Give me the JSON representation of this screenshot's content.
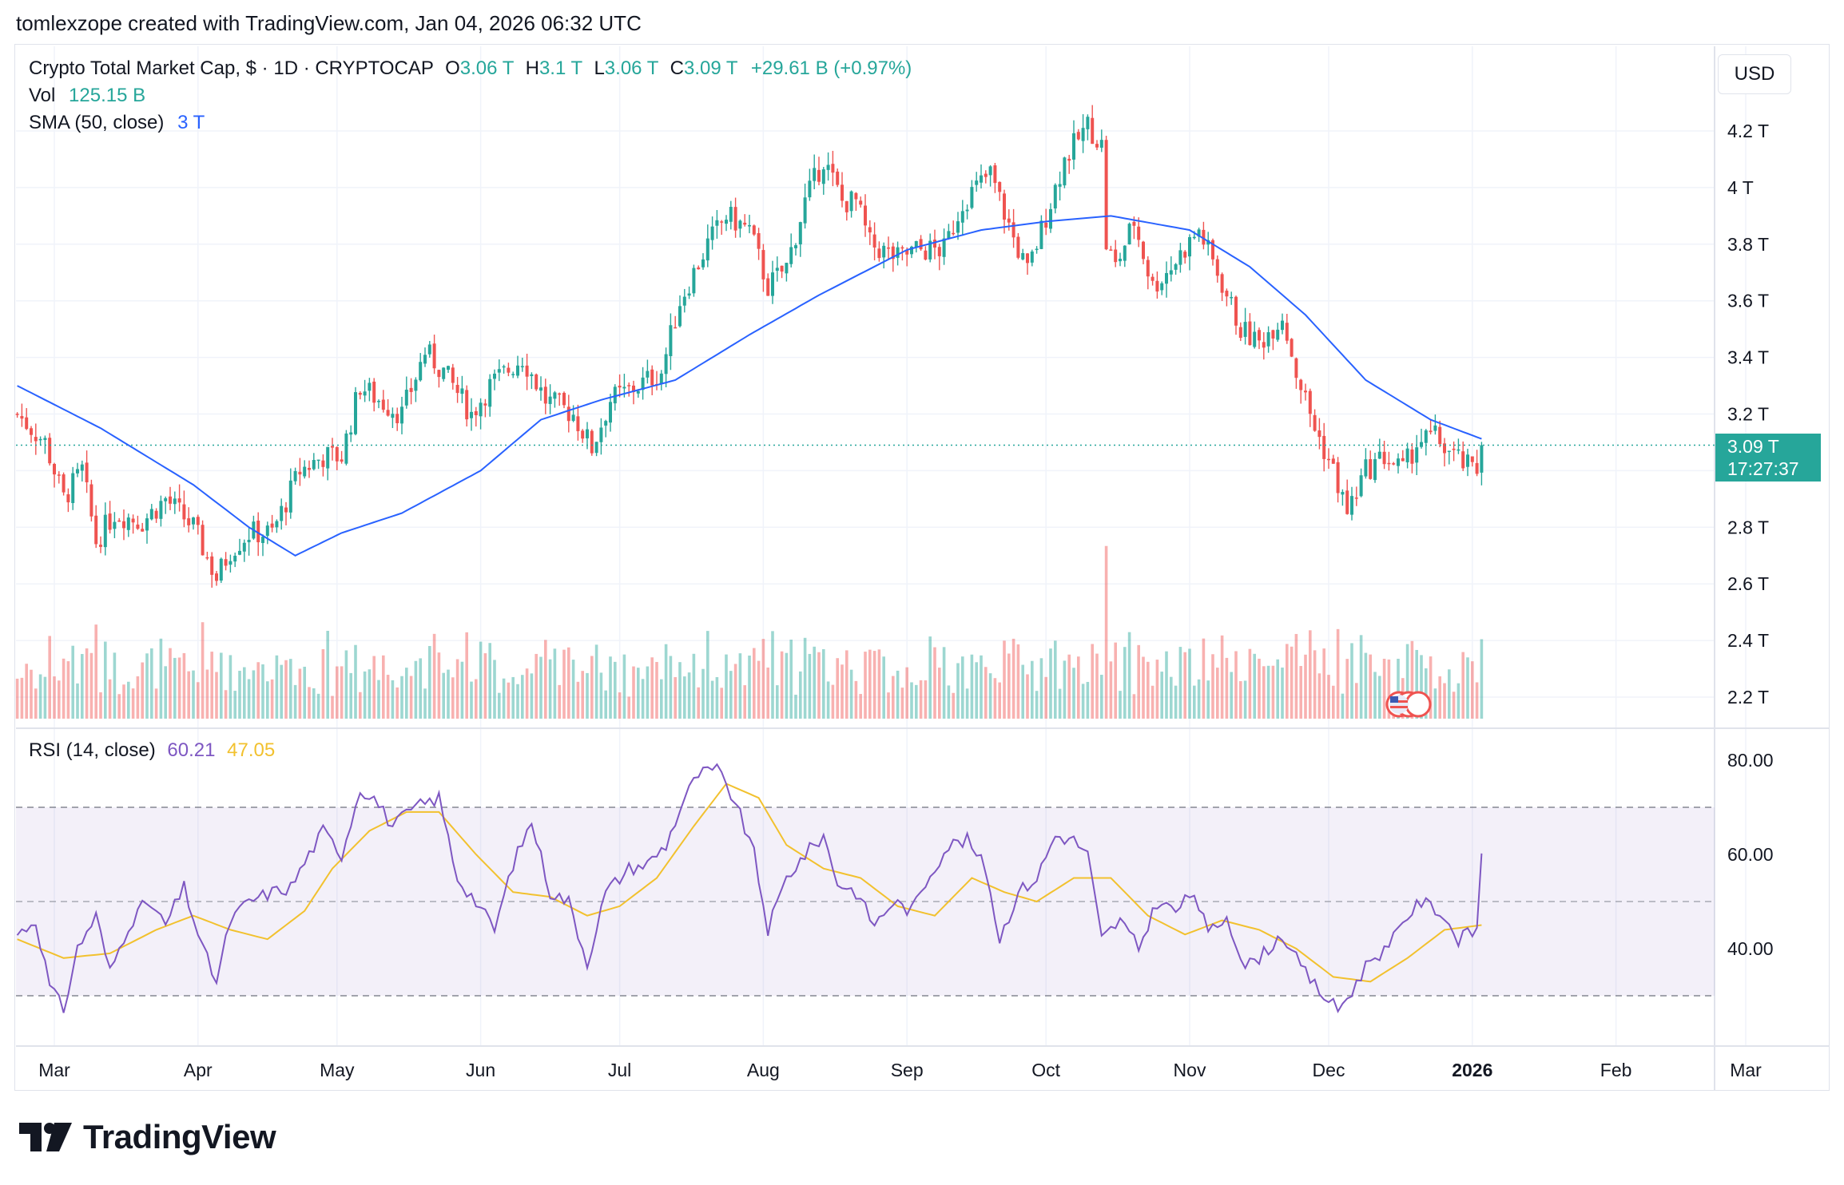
{
  "header": {
    "attribution": "tomlexzope created with TradingView.com, Jan 04, 2026 06:32 UTC"
  },
  "legend": {
    "symbol": "Crypto Total Market Cap, $ · 1D · CRYPTOCAP",
    "o_label": "O",
    "o_value": "3.06 T",
    "h_label": "H",
    "h_value": "3.1 T",
    "l_label": "L",
    "l_value": "3.06 T",
    "c_label": "C",
    "c_value": "3.09 T",
    "change": "+29.61 B (+0.97%)",
    "vol_label": "Vol",
    "vol_value": "125.15 B",
    "sma_label": "SMA (50, close)",
    "sma_value": "3 T",
    "rsi_label": "RSI (14, close)",
    "rsi_value": "60.21",
    "rsi_ma_value": "47.05"
  },
  "axis": {
    "currency": "USD",
    "current_price": "3.09 T",
    "countdown": "17:27:37"
  },
  "footer": {
    "brand": "TradingView"
  },
  "colors": {
    "up": "#26a69a",
    "down": "#ef5350",
    "sma": "#2962ff",
    "rsi": "#7e57c2",
    "rsi_ma": "#f2c12e",
    "rsi_band": "#7e57c2"
  },
  "chart_data": [
    {
      "type": "candlestick",
      "title": "Crypto Total Market Cap, $ · 1D · CRYPTOCAP",
      "unit": "T",
      "y_ticks": [
        "4.2 T",
        "4 T",
        "3.8 T",
        "3.6 T",
        "3.4 T",
        "3.2 T",
        "2.8 T",
        "2.6 T",
        "2.4 T",
        "2.2 T"
      ],
      "y_tick_values": [
        4.2,
        4.0,
        3.8,
        3.6,
        3.4,
        3.2,
        2.8,
        2.6,
        2.4,
        2.2
      ],
      "ylim": [
        2.12,
        4.32
      ],
      "x_ticks": [
        "Mar",
        "Apr",
        "May",
        "Jun",
        "Jul",
        "Aug",
        "Sep",
        "Oct",
        "Nov",
        "Dec",
        "2026",
        "Feb",
        "Mar"
      ],
      "x_tick_days": [
        0,
        31,
        61,
        92,
        122,
        153,
        184,
        214,
        245,
        275,
        306,
        337,
        365
      ],
      "day0_offset": -8,
      "last_day": 308,
      "close_anchors": [
        {
          "d": -8,
          "v": 3.2
        },
        {
          "d": -2,
          "v": 3.1
        },
        {
          "d": 2,
          "v": 2.9
        },
        {
          "d": 6,
          "v": 3.0
        },
        {
          "d": 9,
          "v": 2.75
        },
        {
          "d": 13,
          "v": 2.85
        },
        {
          "d": 19,
          "v": 2.82
        },
        {
          "d": 24,
          "v": 2.9
        },
        {
          "d": 30,
          "v": 2.8
        },
        {
          "d": 35,
          "v": 2.62
        },
        {
          "d": 38,
          "v": 2.72
        },
        {
          "d": 42,
          "v": 2.78
        },
        {
          "d": 47,
          "v": 2.78
        },
        {
          "d": 53,
          "v": 3.0
        },
        {
          "d": 58,
          "v": 3.05
        },
        {
          "d": 62,
          "v": 3.05
        },
        {
          "d": 66,
          "v": 3.3
        },
        {
          "d": 70,
          "v": 3.25
        },
        {
          "d": 75,
          "v": 3.2
        },
        {
          "d": 80,
          "v": 3.42
        },
        {
          "d": 84,
          "v": 3.35
        },
        {
          "d": 90,
          "v": 3.2
        },
        {
          "d": 94,
          "v": 3.3
        },
        {
          "d": 101,
          "v": 3.4
        },
        {
          "d": 106,
          "v": 3.25
        },
        {
          "d": 112,
          "v": 3.2
        },
        {
          "d": 116,
          "v": 3.08
        },
        {
          "d": 120,
          "v": 3.25
        },
        {
          "d": 126,
          "v": 3.3
        },
        {
          "d": 131,
          "v": 3.35
        },
        {
          "d": 135,
          "v": 3.6
        },
        {
          "d": 141,
          "v": 3.8
        },
        {
          "d": 145,
          "v": 3.9
        },
        {
          "d": 150,
          "v": 3.85
        },
        {
          "d": 154,
          "v": 3.65
        },
        {
          "d": 158,
          "v": 3.72
        },
        {
          "d": 162,
          "v": 3.95
        },
        {
          "d": 166,
          "v": 4.1
        },
        {
          "d": 170,
          "v": 3.95
        },
        {
          "d": 173,
          "v": 3.95
        },
        {
          "d": 176,
          "v": 3.8
        },
        {
          "d": 182,
          "v": 3.75
        },
        {
          "d": 186,
          "v": 3.78
        },
        {
          "d": 192,
          "v": 3.78
        },
        {
          "d": 196,
          "v": 3.95
        },
        {
          "d": 202,
          "v": 4.05
        },
        {
          "d": 207,
          "v": 3.82
        },
        {
          "d": 210,
          "v": 3.7
        },
        {
          "d": 214,
          "v": 3.9
        },
        {
          "d": 218,
          "v": 4.1
        },
        {
          "d": 223,
          "v": 4.22
        },
        {
          "d": 226,
          "v": 4.15
        },
        {
          "d": 227,
          "v": 3.8
        },
        {
          "d": 229,
          "v": 3.72
        },
        {
          "d": 233,
          "v": 3.88
        },
        {
          "d": 237,
          "v": 3.65
        },
        {
          "d": 241,
          "v": 3.72
        },
        {
          "d": 247,
          "v": 3.85
        },
        {
          "d": 251,
          "v": 3.7
        },
        {
          "d": 256,
          "v": 3.5
        },
        {
          "d": 260,
          "v": 3.45
        },
        {
          "d": 265,
          "v": 3.55
        },
        {
          "d": 268,
          "v": 3.35
        },
        {
          "d": 272,
          "v": 3.15
        },
        {
          "d": 276,
          "v": 3.0
        },
        {
          "d": 279,
          "v": 2.85
        },
        {
          "d": 283,
          "v": 3.0
        },
        {
          "d": 287,
          "v": 3.05
        },
        {
          "d": 291,
          "v": 3.0
        },
        {
          "d": 294,
          "v": 3.1
        },
        {
          "d": 298,
          "v": 3.12
        },
        {
          "d": 302,
          "v": 3.05
        },
        {
          "d": 306,
          "v": 3.0
        },
        {
          "d": 310,
          "v": 3.0
        },
        {
          "d": 314,
          "v": 2.92
        },
        {
          "d": 318,
          "v": 2.95
        },
        {
          "d": 323,
          "v": 2.98
        },
        {
          "d": 327,
          "v": 2.95
        },
        {
          "d": 331,
          "v": 3.0
        },
        {
          "d": 334,
          "v": 3.06
        },
        {
          "d": 336,
          "v": 3.09
        }
      ],
      "sma_anchors": [
        {
          "d": -8,
          "v": 3.3
        },
        {
          "d": 10,
          "v": 3.15
        },
        {
          "d": 30,
          "v": 2.95
        },
        {
          "d": 42,
          "v": 2.8
        },
        {
          "d": 52,
          "v": 2.7
        },
        {
          "d": 62,
          "v": 2.78
        },
        {
          "d": 75,
          "v": 2.85
        },
        {
          "d": 92,
          "v": 3.0
        },
        {
          "d": 105,
          "v": 3.18
        },
        {
          "d": 118,
          "v": 3.25
        },
        {
          "d": 134,
          "v": 3.32
        },
        {
          "d": 150,
          "v": 3.48
        },
        {
          "d": 165,
          "v": 3.62
        },
        {
          "d": 184,
          "v": 3.78
        },
        {
          "d": 200,
          "v": 3.85
        },
        {
          "d": 214,
          "v": 3.88
        },
        {
          "d": 228,
          "v": 3.9
        },
        {
          "d": 245,
          "v": 3.85
        },
        {
          "d": 258,
          "v": 3.72
        },
        {
          "d": 270,
          "v": 3.55
        },
        {
          "d": 283,
          "v": 3.32
        },
        {
          "d": 297,
          "v": 3.18
        },
        {
          "d": 310,
          "v": 3.1
        },
        {
          "d": 322,
          "v": 3.05
        },
        {
          "d": 336,
          "v": 2.98
        }
      ],
      "current_price": 3.09,
      "sma_last": 3.0,
      "volume_last": "125.15 B"
    },
    {
      "type": "line",
      "title": "RSI (14, close)",
      "y_ticks": [
        "80.00",
        "60.00",
        "40.00"
      ],
      "y_tick_values": [
        80,
        60,
        40
      ],
      "ylim": [
        19,
        85
      ],
      "bands": [
        70,
        50,
        30
      ],
      "rsi_anchors": [
        {
          "d": -8,
          "v": 43
        },
        {
          "d": -4,
          "v": 46
        },
        {
          "d": -1,
          "v": 32
        },
        {
          "d": 2,
          "v": 27
        },
        {
          "d": 5,
          "v": 40
        },
        {
          "d": 9,
          "v": 47
        },
        {
          "d": 12,
          "v": 35
        },
        {
          "d": 16,
          "v": 45
        },
        {
          "d": 20,
          "v": 50
        },
        {
          "d": 24,
          "v": 45
        },
        {
          "d": 28,
          "v": 53
        },
        {
          "d": 32,
          "v": 40
        },
        {
          "d": 35,
          "v": 33
        },
        {
          "d": 38,
          "v": 46
        },
        {
          "d": 42,
          "v": 50
        },
        {
          "d": 47,
          "v": 52
        },
        {
          "d": 51,
          "v": 53
        },
        {
          "d": 55,
          "v": 60
        },
        {
          "d": 58,
          "v": 65
        },
        {
          "d": 62,
          "v": 60
        },
        {
          "d": 66,
          "v": 74
        },
        {
          "d": 69,
          "v": 72
        },
        {
          "d": 73,
          "v": 66
        },
        {
          "d": 78,
          "v": 70
        },
        {
          "d": 83,
          "v": 72
        },
        {
          "d": 87,
          "v": 55
        },
        {
          "d": 91,
          "v": 50
        },
        {
          "d": 95,
          "v": 44
        },
        {
          "d": 99,
          "v": 58
        },
        {
          "d": 103,
          "v": 67
        },
        {
          "d": 107,
          "v": 52
        },
        {
          "d": 111,
          "v": 50
        },
        {
          "d": 115,
          "v": 37
        },
        {
          "d": 119,
          "v": 52
        },
        {
          "d": 124,
          "v": 57
        },
        {
          "d": 128,
          "v": 58
        },
        {
          "d": 132,
          "v": 62
        },
        {
          "d": 136,
          "v": 72
        },
        {
          "d": 139,
          "v": 77
        },
        {
          "d": 143,
          "v": 78
        },
        {
          "d": 147,
          "v": 71
        },
        {
          "d": 151,
          "v": 60
        },
        {
          "d": 154,
          "v": 44
        },
        {
          "d": 158,
          "v": 55
        },
        {
          "d": 162,
          "v": 60
        },
        {
          "d": 166,
          "v": 64
        },
        {
          "d": 169,
          "v": 54
        },
        {
          "d": 173,
          "v": 52
        },
        {
          "d": 177,
          "v": 45
        },
        {
          "d": 181,
          "v": 50
        },
        {
          "d": 185,
          "v": 48
        },
        {
          "d": 189,
          "v": 56
        },
        {
          "d": 193,
          "v": 62
        },
        {
          "d": 197,
          "v": 63
        },
        {
          "d": 201,
          "v": 57
        },
        {
          "d": 204,
          "v": 42
        },
        {
          "d": 208,
          "v": 52
        },
        {
          "d": 212,
          "v": 55
        },
        {
          "d": 216,
          "v": 64
        },
        {
          "d": 220,
          "v": 63
        },
        {
          "d": 223,
          "v": 60
        },
        {
          "d": 226,
          "v": 42
        },
        {
          "d": 230,
          "v": 46
        },
        {
          "d": 234,
          "v": 40
        },
        {
          "d": 238,
          "v": 50
        },
        {
          "d": 242,
          "v": 48
        },
        {
          "d": 246,
          "v": 52
        },
        {
          "d": 249,
          "v": 43
        },
        {
          "d": 253,
          "v": 47
        },
        {
          "d": 257,
          "v": 36
        },
        {
          "d": 261,
          "v": 39
        },
        {
          "d": 265,
          "v": 43
        },
        {
          "d": 269,
          "v": 36
        },
        {
          "d": 273,
          "v": 31
        },
        {
          "d": 277,
          "v": 27
        },
        {
          "d": 280,
          "v": 31
        },
        {
          "d": 284,
          "v": 38
        },
        {
          "d": 288,
          "v": 40
        },
        {
          "d": 291,
          "v": 46
        },
        {
          "d": 295,
          "v": 50
        },
        {
          "d": 299,
          "v": 48
        },
        {
          "d": 303,
          "v": 42
        },
        {
          "d": 307,
          "v": 44
        },
        {
          "d": 311,
          "v": 43
        },
        {
          "d": 315,
          "v": 45
        },
        {
          "d": 319,
          "v": 42
        },
        {
          "d": 323,
          "v": 46
        },
        {
          "d": 327,
          "v": 44
        },
        {
          "d": 331,
          "v": 47
        },
        {
          "d": 334,
          "v": 56
        },
        {
          "d": 336,
          "v": 60.21
        }
      ],
      "rsi_ma_anchors": [
        {
          "d": -8,
          "v": 42
        },
        {
          "d": 2,
          "v": 38
        },
        {
          "d": 12,
          "v": 39
        },
        {
          "d": 22,
          "v": 44
        },
        {
          "d": 30,
          "v": 47
        },
        {
          "d": 38,
          "v": 44
        },
        {
          "d": 46,
          "v": 42
        },
        {
          "d": 54,
          "v": 48
        },
        {
          "d": 60,
          "v": 57
        },
        {
          "d": 68,
          "v": 65
        },
        {
          "d": 76,
          "v": 69
        },
        {
          "d": 83,
          "v": 69
        },
        {
          "d": 91,
          "v": 60
        },
        {
          "d": 99,
          "v": 52
        },
        {
          "d": 107,
          "v": 51
        },
        {
          "d": 115,
          "v": 47
        },
        {
          "d": 122,
          "v": 49
        },
        {
          "d": 130,
          "v": 55
        },
        {
          "d": 138,
          "v": 66
        },
        {
          "d": 145,
          "v": 75
        },
        {
          "d": 152,
          "v": 72
        },
        {
          "d": 158,
          "v": 62
        },
        {
          "d": 166,
          "v": 57
        },
        {
          "d": 174,
          "v": 55
        },
        {
          "d": 182,
          "v": 49
        },
        {
          "d": 190,
          "v": 47
        },
        {
          "d": 198,
          "v": 55
        },
        {
          "d": 205,
          "v": 52
        },
        {
          "d": 212,
          "v": 50
        },
        {
          "d": 220,
          "v": 55
        },
        {
          "d": 228,
          "v": 55
        },
        {
          "d": 236,
          "v": 47
        },
        {
          "d": 244,
          "v": 43
        },
        {
          "d": 252,
          "v": 46
        },
        {
          "d": 260,
          "v": 44
        },
        {
          "d": 268,
          "v": 40
        },
        {
          "d": 276,
          "v": 34
        },
        {
          "d": 284,
          "v": 33
        },
        {
          "d": 292,
          "v": 38
        },
        {
          "d": 300,
          "v": 44
        },
        {
          "d": 308,
          "v": 45
        },
        {
          "d": 316,
          "v": 42
        },
        {
          "d": 324,
          "v": 42
        },
        {
          "d": 330,
          "v": 43
        },
        {
          "d": 336,
          "v": 47.05
        }
      ],
      "rsi_last": 60.21,
      "rsi_ma_last": 47.05
    }
  ]
}
